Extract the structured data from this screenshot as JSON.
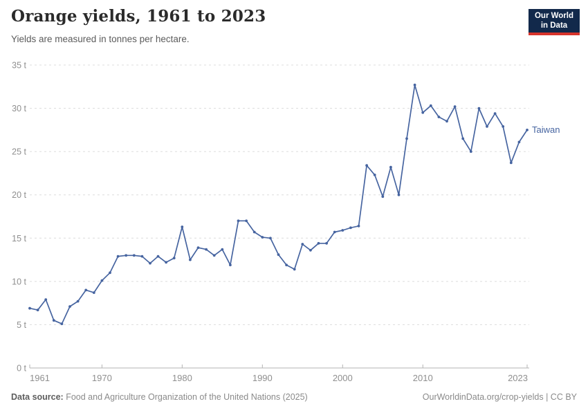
{
  "header": {
    "title": "Orange yields, 1961 to 2023",
    "subtitle": "Yields are measured in tonnes per hectare.",
    "logo": {
      "line1": "Our World",
      "line2": "in Data",
      "bg_color": "#12294b",
      "accent_color": "#d7342c",
      "text_color": "#ffffff"
    }
  },
  "chart_data": {
    "type": "line",
    "title": "Orange yields, 1961 to 2023",
    "subtitle": "Yields are measured in tonnes per hectare.",
    "unit": "tonnes per hectare",
    "xlim": [
      1961,
      2023
    ],
    "ylim": [
      0,
      35
    ],
    "grid": "horizontal-dashed",
    "legend_position": "line-end-label",
    "x_ticks": [
      1961,
      1970,
      1980,
      1990,
      2000,
      2010,
      2023
    ],
    "x_tick_labels": [
      "1961",
      "1970",
      "1980",
      "1990",
      "2000",
      "2010",
      "2023"
    ],
    "y_ticks": [
      0,
      5,
      10,
      15,
      20,
      25,
      30,
      35
    ],
    "y_tick_labels": [
      "0 t",
      "5 t",
      "10 t",
      "15 t",
      "20 t",
      "25 t",
      "30 t",
      "35 t"
    ],
    "series": [
      {
        "name": "Taiwan",
        "color": "#4664a0",
        "x": [
          1961,
          1962,
          1963,
          1964,
          1965,
          1966,
          1967,
          1968,
          1969,
          1970,
          1971,
          1972,
          1973,
          1974,
          1975,
          1976,
          1977,
          1978,
          1979,
          1980,
          1981,
          1982,
          1983,
          1984,
          1985,
          1986,
          1987,
          1988,
          1989,
          1990,
          1991,
          1992,
          1993,
          1994,
          1995,
          1996,
          1997,
          1998,
          1999,
          2000,
          2001,
          2002,
          2003,
          2004,
          2005,
          2006,
          2007,
          2008,
          2009,
          2010,
          2011,
          2012,
          2013,
          2014,
          2015,
          2016,
          2017,
          2018,
          2019,
          2020,
          2021,
          2022,
          2023
        ],
        "values": [
          6.9,
          6.7,
          7.9,
          5.5,
          5.1,
          7.1,
          7.7,
          9.0,
          8.7,
          10.1,
          11.0,
          12.9,
          13.0,
          13.0,
          12.9,
          12.1,
          12.9,
          12.2,
          12.7,
          16.3,
          12.5,
          13.9,
          13.7,
          13.0,
          13.7,
          11.9,
          17.0,
          17.0,
          15.7,
          15.1,
          15.0,
          13.1,
          11.9,
          11.4,
          14.3,
          13.6,
          14.4,
          14.4,
          15.7,
          15.9,
          16.2,
          16.4,
          23.4,
          22.3,
          19.8,
          23.2,
          20.0,
          26.5,
          32.7,
          29.5,
          30.3,
          29.0,
          28.5,
          30.2,
          26.5,
          25.0,
          30.0,
          27.9,
          29.4,
          27.9,
          23.7,
          26.1,
          27.5
        ]
      }
    ]
  },
  "footer": {
    "source_label": "Data source:",
    "source_text": " Food and Agriculture Organization of the United Nations (2025)",
    "link_text": "OurWorldinData.org/crop-yields | CC BY"
  }
}
